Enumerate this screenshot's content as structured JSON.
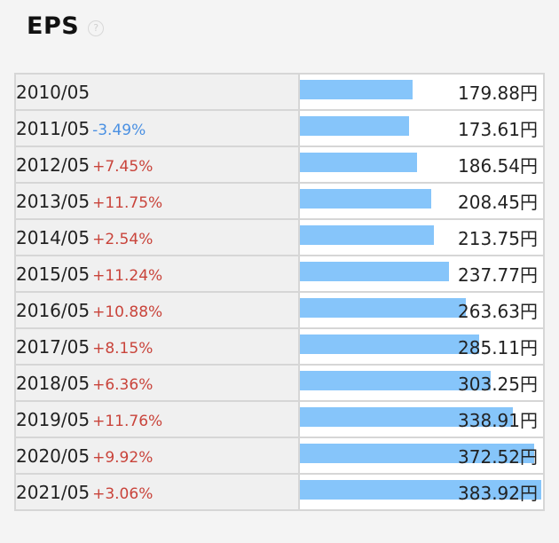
{
  "header": {
    "title": "EPS",
    "help_glyph": "?"
  },
  "colors": {
    "bar": "#86c5fa",
    "negative_change": "#4a90e2",
    "positive_change": "#c9443b"
  },
  "chart_data": {
    "type": "bar",
    "orientation": "horizontal",
    "unit": "円",
    "rows": [
      {
        "year": "2010/05",
        "change": "",
        "change_dir": "none",
        "value": 179.88,
        "value_label": "179.88円"
      },
      {
        "year": "2011/05",
        "change": "-3.49%",
        "change_dir": "neg",
        "value": 173.61,
        "value_label": "173.61円"
      },
      {
        "year": "2012/05",
        "change": "+7.45%",
        "change_dir": "pos",
        "value": 186.54,
        "value_label": "186.54円"
      },
      {
        "year": "2013/05",
        "change": "+11.75%",
        "change_dir": "pos",
        "value": 208.45,
        "value_label": "208.45円"
      },
      {
        "year": "2014/05",
        "change": "+2.54%",
        "change_dir": "pos",
        "value": 213.75,
        "value_label": "213.75円"
      },
      {
        "year": "2015/05",
        "change": "+11.24%",
        "change_dir": "pos",
        "value": 237.77,
        "value_label": "237.77円"
      },
      {
        "year": "2016/05",
        "change": "+10.88%",
        "change_dir": "pos",
        "value": 263.63,
        "value_label": "263.63円"
      },
      {
        "year": "2017/05",
        "change": "+8.15%",
        "change_dir": "pos",
        "value": 285.11,
        "value_label": "285.11円"
      },
      {
        "year": "2018/05",
        "change": "+6.36%",
        "change_dir": "pos",
        "value": 303.25,
        "value_label": "303.25円"
      },
      {
        "year": "2019/05",
        "change": "+11.76%",
        "change_dir": "pos",
        "value": 338.91,
        "value_label": "338.91円"
      },
      {
        "year": "2020/05",
        "change": "+9.92%",
        "change_dir": "pos",
        "value": 372.52,
        "value_label": "372.52円"
      },
      {
        "year": "2021/05",
        "change": "+3.06%",
        "change_dir": "pos",
        "value": 383.92,
        "value_label": "383.92円"
      }
    ]
  }
}
